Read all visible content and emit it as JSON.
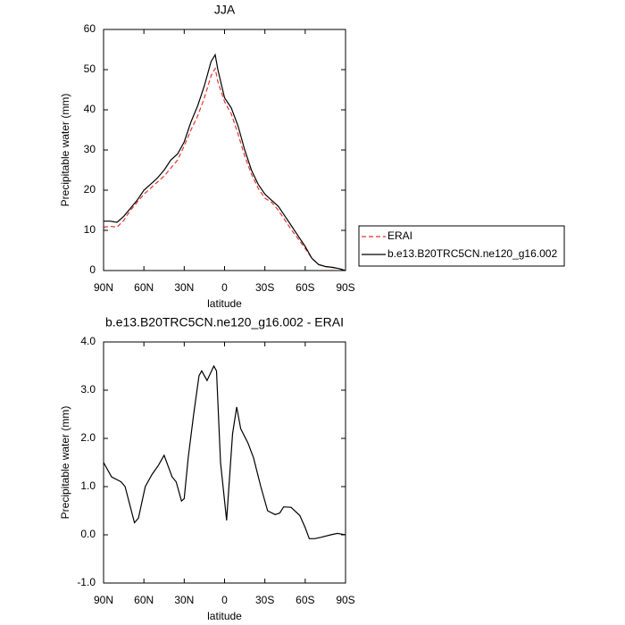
{
  "chart_data": [
    {
      "type": "line",
      "title": "JJA",
      "ylabel": "Precipitable water (mm)",
      "xlabel": "latitude",
      "x": [
        90,
        85,
        80,
        75,
        70,
        65,
        60,
        55,
        50,
        45,
        40,
        35,
        30,
        25,
        20,
        15,
        10,
        7,
        5,
        0,
        -5,
        -10,
        -15,
        -20,
        -25,
        -30,
        -35,
        -40,
        -45,
        -50,
        -55,
        -60,
        -65,
        -70,
        -75,
        -80,
        -85,
        -90
      ],
      "series": [
        {
          "name": "ERAI",
          "color": "#e8322c",
          "dashed": true,
          "values": [
            10.8,
            11,
            10.8,
            12.5,
            15,
            17,
            19,
            20.5,
            22,
            23.5,
            25.5,
            27.5,
            31,
            35,
            38.5,
            43,
            48.5,
            50.3,
            47,
            42,
            39,
            34,
            28.5,
            24,
            20.5,
            18,
            17,
            15,
            12.5,
            10,
            7.8,
            5.5,
            3,
            1.5,
            1,
            0.8,
            0.5,
            0
          ]
        },
        {
          "name": "b.e13.B20TRC5CN.ne120_g16.002",
          "color": "#000000",
          "dashed": false,
          "values": [
            12.3,
            12.3,
            12,
            13.5,
            15.5,
            17.5,
            20,
            21.5,
            23,
            25,
            27.5,
            29,
            32,
            37,
            41,
            46,
            52,
            53.7,
            50,
            43,
            40.5,
            36,
            30,
            25,
            21.5,
            19,
            17.5,
            16,
            13.5,
            11,
            8.5,
            6,
            3,
            1.5,
            1,
            0.8,
            0.5,
            0
          ]
        }
      ],
      "xlim": [
        90,
        -90
      ],
      "xticks": [
        {
          "value": 90,
          "label": "90N"
        },
        {
          "value": 60,
          "label": "60N"
        },
        {
          "value": 30,
          "label": "30N"
        },
        0,
        {
          "value": -30,
          "label": "30S"
        },
        {
          "value": -60,
          "label": "60S"
        },
        {
          "value": -90,
          "label": "90S"
        }
      ],
      "ylim": [
        0,
        60
      ],
      "yticks": [
        0,
        10,
        20,
        30,
        40,
        50,
        60
      ],
      "legend": "outside-right"
    },
    {
      "type": "line",
      "title": "b.e13.B20TRC5CN.ne120_g16.002 - ERAI",
      "ylabel": "Precipitable water (mm)",
      "xlabel": "latitude",
      "x": [
        90,
        84,
        77,
        74,
        67,
        64,
        59,
        54,
        49,
        45,
        39,
        36,
        32,
        30,
        27,
        23,
        19,
        17,
        13,
        8,
        6,
        3,
        -1.5,
        -4,
        -6,
        -9,
        -12,
        -17.5,
        -21.5,
        -27,
        -32,
        -37.5,
        -41,
        -44,
        -49.5,
        -56,
        -60,
        -63,
        -67,
        -72,
        -79,
        -84,
        -90
      ],
      "series": [
        {
          "color": "#000000",
          "dashed": false,
          "values": [
            1.5,
            1.2,
            1.1,
            1.0,
            0.25,
            0.35,
            1.0,
            1.25,
            1.45,
            1.65,
            1.2,
            1.1,
            0.7,
            0.75,
            1.6,
            2.5,
            3.3,
            3.4,
            3.2,
            3.5,
            3.4,
            1.5,
            0.3,
            1.3,
            2.1,
            2.65,
            2.2,
            1.9,
            1.6,
            1.0,
            0.5,
            0.42,
            0.45,
            0.58,
            0.57,
            0.4,
            0.15,
            -0.08,
            -0.08,
            -0.05,
            0.0,
            0.03,
            0.0
          ]
        }
      ],
      "xlim": [
        90,
        -90
      ],
      "xticks": [
        {
          "value": 90,
          "label": "90N"
        },
        {
          "value": 60,
          "label": "60N"
        },
        {
          "value": 30,
          "label": "30N"
        },
        0,
        {
          "value": -30,
          "label": "30S"
        },
        {
          "value": -60,
          "label": "60S"
        },
        {
          "value": -90,
          "label": "90S"
        }
      ],
      "ylim": [
        -1,
        4
      ],
      "yticks": [
        {
          "value": -1,
          "label": "-1.0"
        },
        {
          "value": 0,
          "label": "0.0"
        },
        {
          "value": 1,
          "label": "1.0"
        },
        {
          "value": 2,
          "label": "2.0"
        },
        {
          "value": 3,
          "label": "3.0"
        },
        {
          "value": 4,
          "label": "4.0"
        }
      ]
    }
  ]
}
